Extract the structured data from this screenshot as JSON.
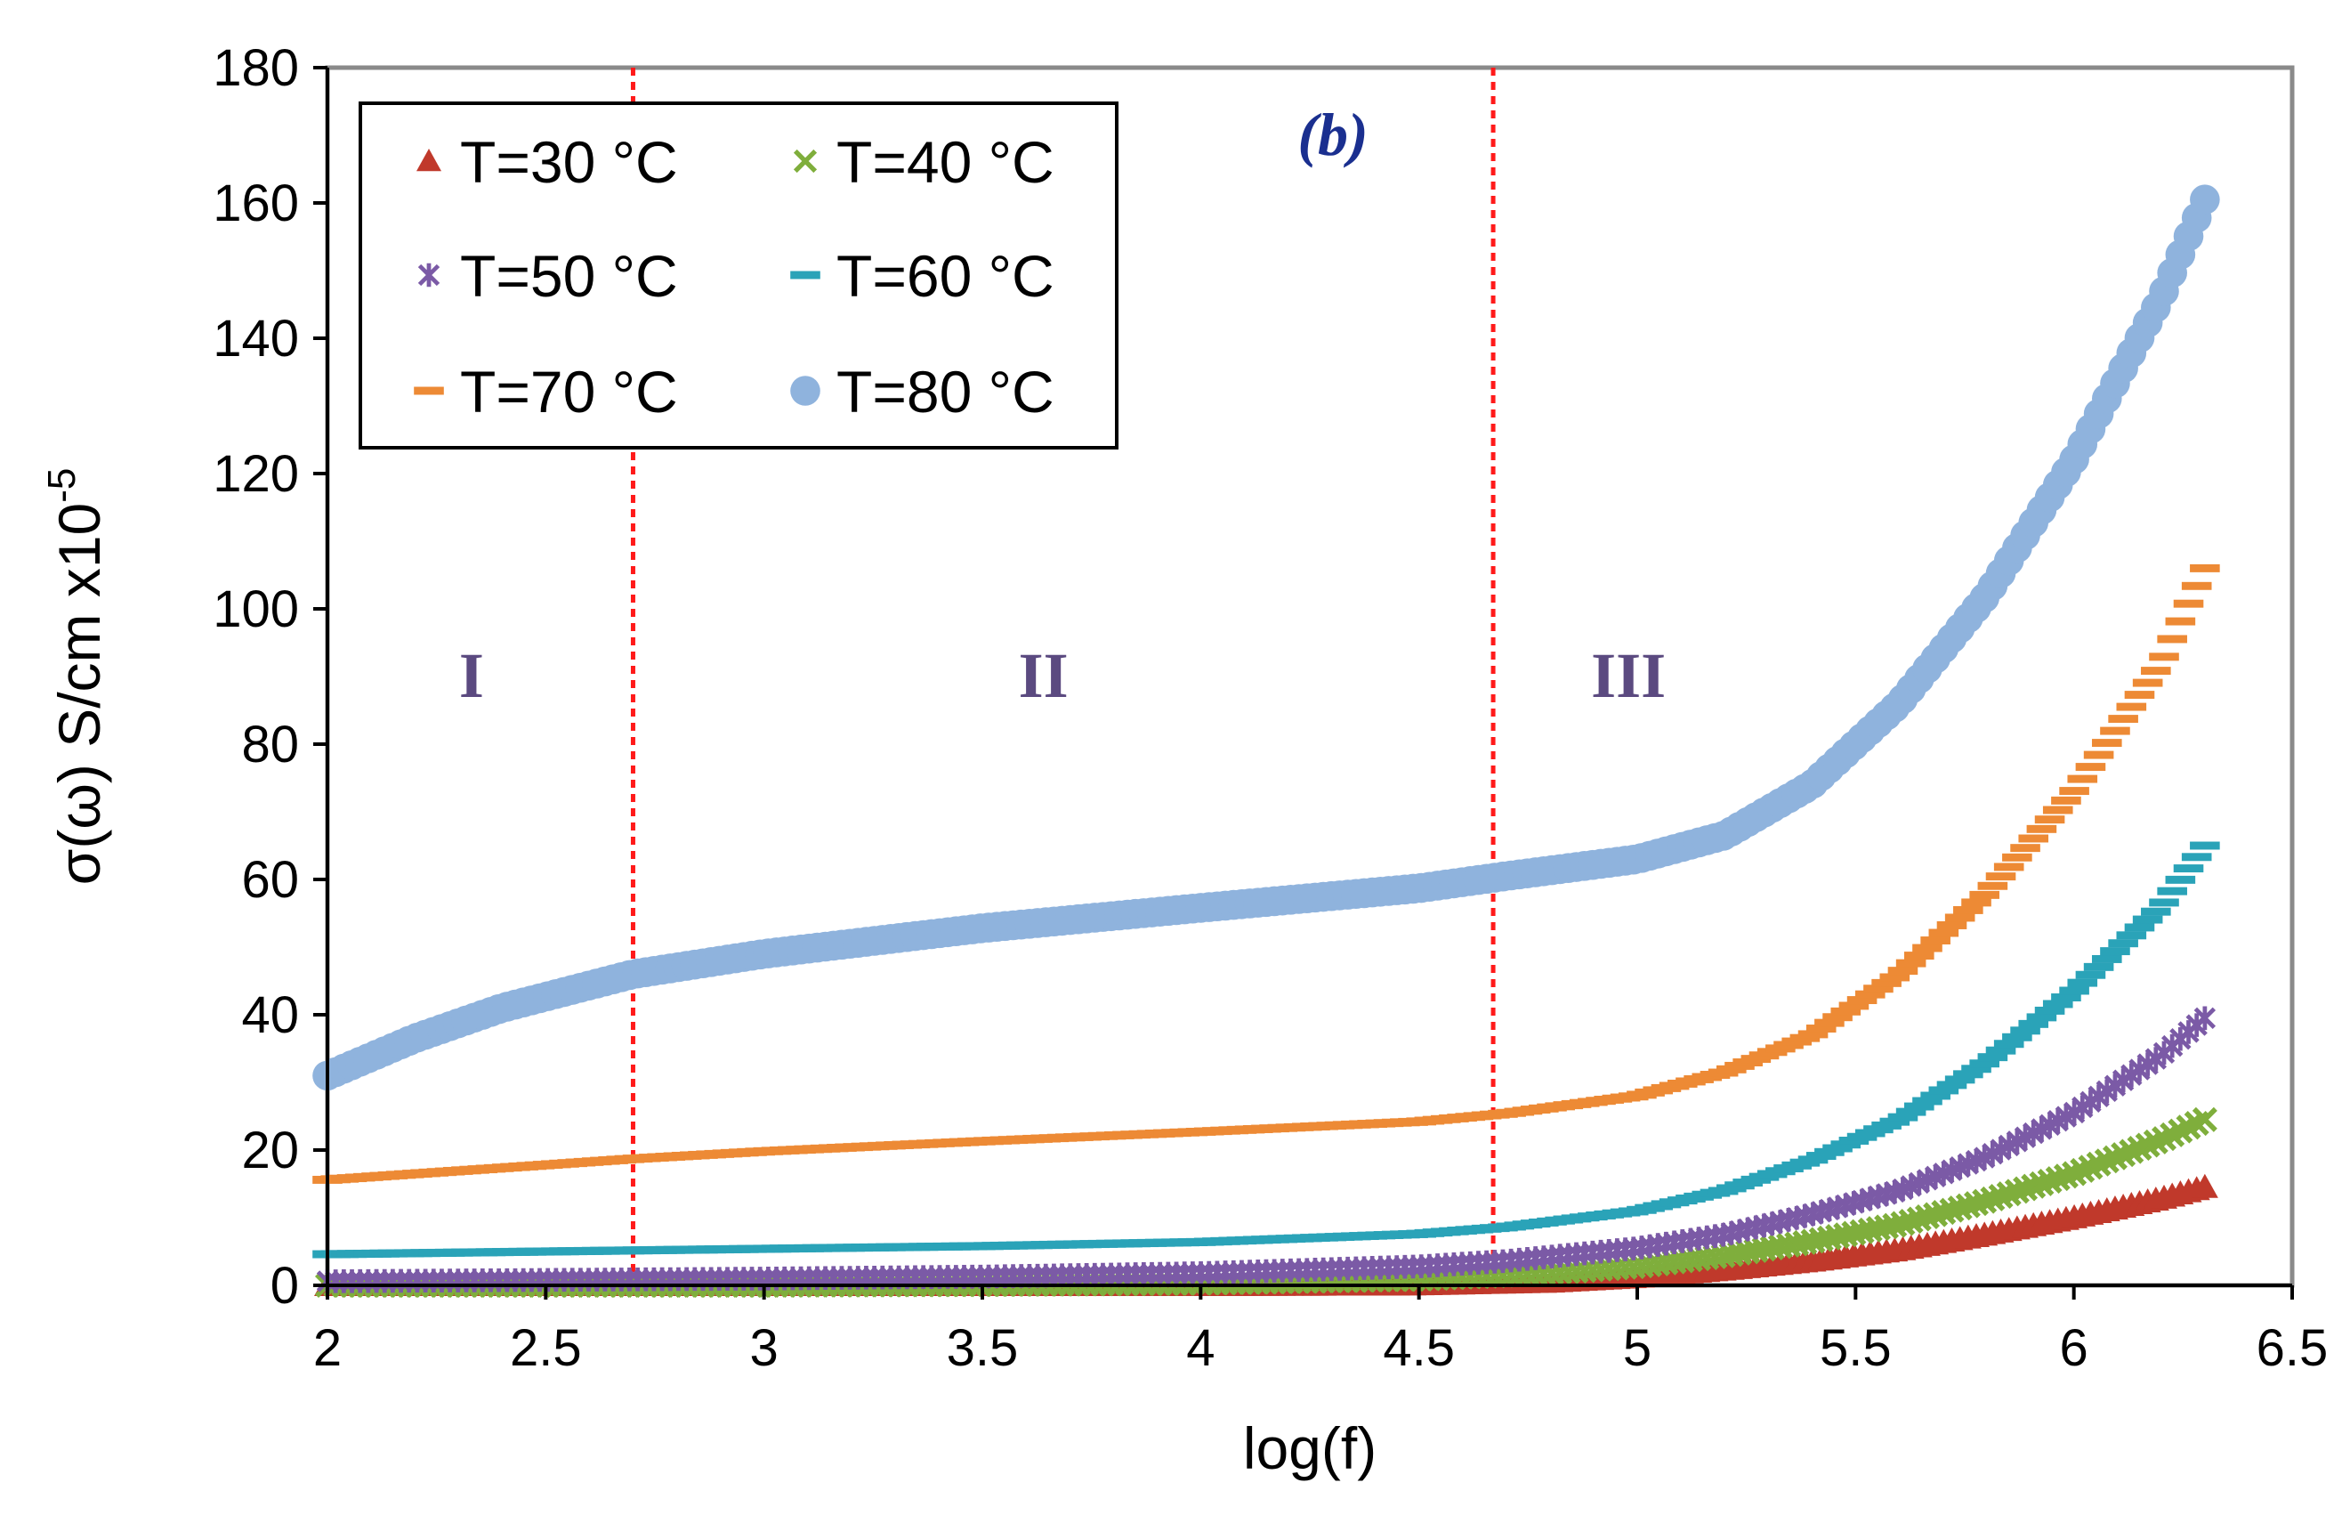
{
  "chart_data": {
    "type": "scatter",
    "panel_label": "(b)",
    "xlabel": "log(f)",
    "ylabel": "σ(ω)  S/cm x10",
    "ylabel_exponent": "-5",
    "xlim": [
      2,
      6.5
    ],
    "ylim": [
      0,
      180
    ],
    "xticks": [
      "2",
      "2.5",
      "3",
      "3.5",
      "4",
      "4.5",
      "5",
      "5.5",
      "6",
      "6.5"
    ],
    "yticks": [
      "0",
      "20",
      "40",
      "60",
      "80",
      "100",
      "120",
      "140",
      "160",
      "180"
    ],
    "dividers": [
      2.7,
      4.67
    ],
    "regions": [
      {
        "label": "I",
        "x": 2.33,
        "y": 87
      },
      {
        "label": "II",
        "x": 3.64,
        "y": 87
      },
      {
        "label": "III",
        "x": 4.98,
        "y": 87
      }
    ],
    "legend_position": "top-left",
    "series": [
      {
        "name": "T=30 °C",
        "marker": "triangle",
        "color": "#c0392b",
        "points": [
          [
            2,
            0
          ],
          [
            3,
            0
          ],
          [
            3.5,
            0
          ],
          [
            4,
            0
          ],
          [
            4.5,
            0.1
          ],
          [
            4.8,
            0.5
          ],
          [
            5,
            1.2
          ],
          [
            5.2,
            2.3
          ],
          [
            5.4,
            3.6
          ],
          [
            5.6,
            5.2
          ],
          [
            5.8,
            7.5
          ],
          [
            6,
            10
          ],
          [
            6.2,
            12.8
          ],
          [
            6.3,
            14.5
          ]
        ]
      },
      {
        "name": "T=40 °C",
        "marker": "x",
        "color": "#7fae3c",
        "points": [
          [
            2,
            0
          ],
          [
            3,
            0
          ],
          [
            3.5,
            0.1
          ],
          [
            4,
            0.3
          ],
          [
            4.5,
            0.9
          ],
          [
            4.8,
            1.8
          ],
          [
            5,
            2.8
          ],
          [
            5.2,
            4.4
          ],
          [
            5.4,
            6.5
          ],
          [
            5.6,
            9
          ],
          [
            5.8,
            12.5
          ],
          [
            6,
            16.5
          ],
          [
            6.2,
            21.5
          ],
          [
            6.3,
            24.5
          ]
        ]
      },
      {
        "name": "T=50 °C",
        "marker": "star",
        "color": "#7b5aa6",
        "points": [
          [
            2,
            0.6
          ],
          [
            2.5,
            0.8
          ],
          [
            3,
            1
          ],
          [
            3.5,
            1.3
          ],
          [
            4,
            1.8
          ],
          [
            4.5,
            2.8
          ],
          [
            4.7,
            3.6
          ],
          [
            5,
            5.5
          ],
          [
            5.2,
            7.5
          ],
          [
            5.4,
            10.5
          ],
          [
            5.6,
            14
          ],
          [
            5.8,
            19
          ],
          [
            6,
            25.5
          ],
          [
            6.2,
            34
          ],
          [
            6.3,
            39.5
          ]
        ]
      },
      {
        "name": "T=60 °C",
        "marker": "dash",
        "color": "#2aa3b8",
        "points": [
          [
            2,
            4.6
          ],
          [
            2.5,
            5
          ],
          [
            3,
            5.4
          ],
          [
            3.5,
            5.8
          ],
          [
            4,
            6.4
          ],
          [
            4.5,
            7.6
          ],
          [
            4.7,
            8.6
          ],
          [
            5,
            11
          ],
          [
            5.2,
            14
          ],
          [
            5.4,
            18.5
          ],
          [
            5.6,
            24.5
          ],
          [
            5.8,
            33
          ],
          [
            6,
            43.5
          ],
          [
            6.2,
            56
          ],
          [
            6.3,
            65
          ]
        ]
      },
      {
        "name": "T=70 °C",
        "marker": "dash",
        "color": "#ed8a35",
        "points": [
          [
            2,
            15.6
          ],
          [
            2.5,
            17.8
          ],
          [
            2.7,
            18.7
          ],
          [
            3,
            19.8
          ],
          [
            3.5,
            21.3
          ],
          [
            4,
            22.7
          ],
          [
            4.5,
            24.2
          ],
          [
            4.7,
            25.4
          ],
          [
            5,
            28
          ],
          [
            5.2,
            31.5
          ],
          [
            5.4,
            37
          ],
          [
            5.6,
            46
          ],
          [
            5.8,
            58
          ],
          [
            6,
            73
          ],
          [
            6.2,
            92
          ],
          [
            6.3,
            106
          ]
        ]
      },
      {
        "name": "T=80 °C",
        "marker": "circle",
        "color": "#8fb3dd",
        "points": [
          [
            2,
            31
          ],
          [
            2.2,
            36.5
          ],
          [
            2.4,
            41
          ],
          [
            2.7,
            46
          ],
          [
            3,
            49
          ],
          [
            3.5,
            52.8
          ],
          [
            4,
            55.8
          ],
          [
            4.5,
            58.7
          ],
          [
            4.7,
            60.5
          ],
          [
            5,
            63
          ],
          [
            5.2,
            66.5
          ],
          [
            5.4,
            74
          ],
          [
            5.6,
            86
          ],
          [
            5.8,
            102
          ],
          [
            6,
            122
          ],
          [
            6.2,
            146
          ],
          [
            6.3,
            160.5
          ]
        ]
      }
    ]
  }
}
